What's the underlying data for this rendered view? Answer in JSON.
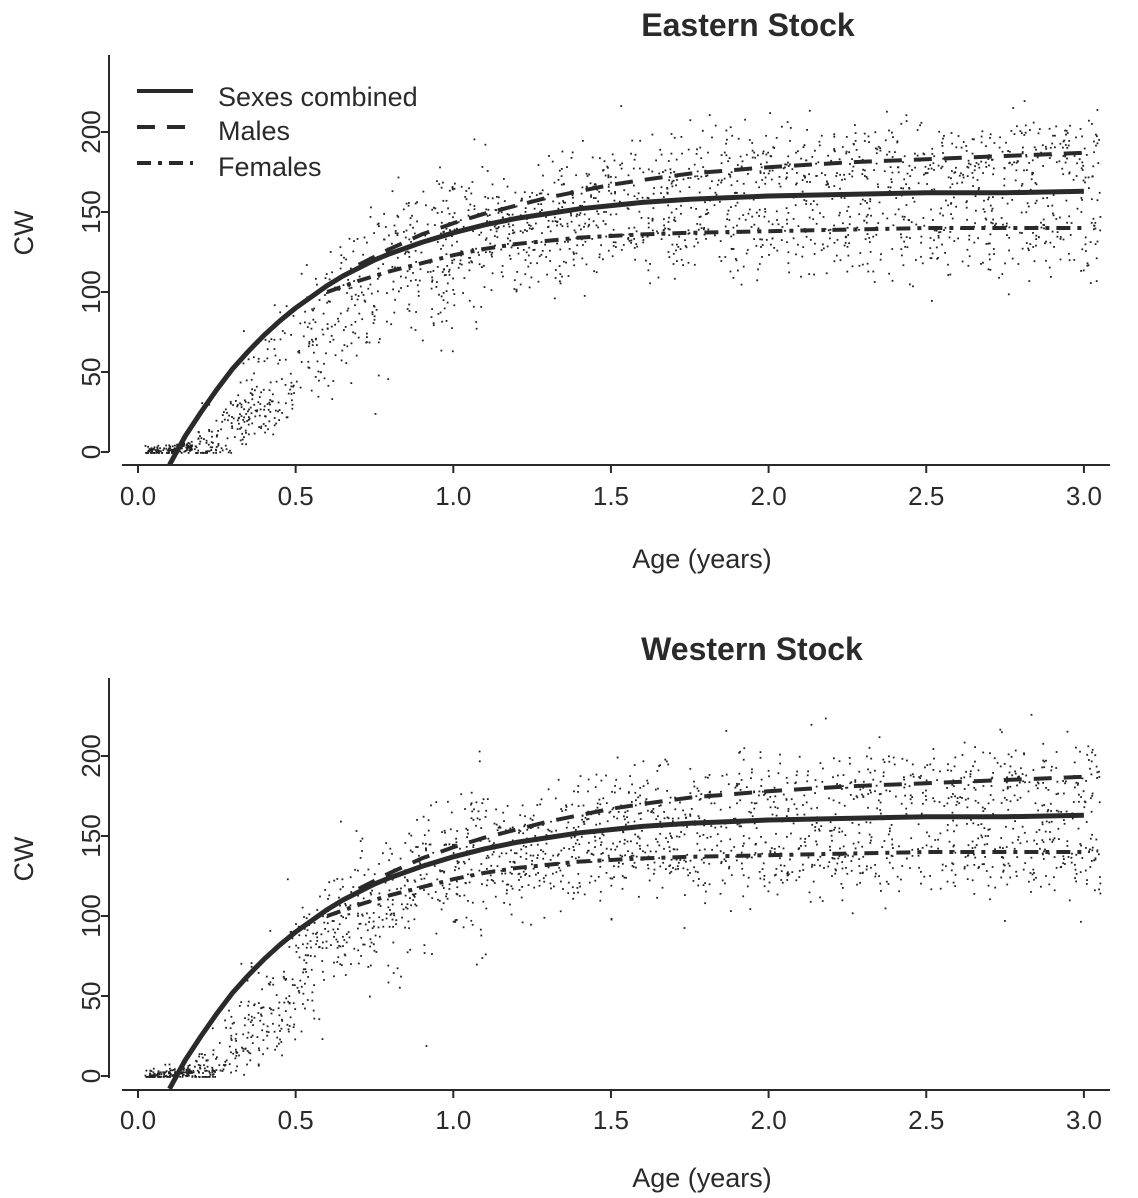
{
  "chart_data": [
    {
      "type": "scatter",
      "title": "Eastern Stock",
      "xlabel": "Age (years)",
      "ylabel": "CW",
      "xlim": [
        -0.03,
        3.1
      ],
      "ylim": [
        -10,
        240
      ],
      "x_ticks": [
        {
          "value": 0.0,
          "label": "0.0"
        },
        {
          "value": 0.5,
          "label": "0.5"
        },
        {
          "value": 1.0,
          "label": "1.0"
        },
        {
          "value": 1.5,
          "label": "1.5"
        },
        {
          "value": 2.0,
          "label": "2.0"
        },
        {
          "value": 2.5,
          "label": "2.5"
        },
        {
          "value": 3.0,
          "label": "3.0"
        }
      ],
      "y_ticks": [
        {
          "value": 0,
          "label": "0"
        },
        {
          "value": 50,
          "label": "50"
        },
        {
          "value": 100,
          "label": "100"
        },
        {
          "value": 150,
          "label": "150"
        },
        {
          "value": 200,
          "label": "200"
        }
      ],
      "legend": {
        "placement": "top-left",
        "entries": [
          {
            "label": "Sexes combined",
            "style": "solid"
          },
          {
            "label": "Males",
            "style": "dashed"
          },
          {
            "label": "Females",
            "style": "dashdot"
          }
        ]
      },
      "series": [
        {
          "name": "Sexes combined",
          "style": "solid",
          "x": [
            0.1,
            0.15,
            0.2,
            0.25,
            0.3,
            0.35,
            0.4,
            0.45,
            0.5,
            0.55,
            0.6,
            0.65,
            0.7,
            0.75,
            0.8,
            0.9,
            1.0,
            1.1,
            1.2,
            1.3,
            1.4,
            1.5,
            1.6,
            1.75,
            2.0,
            2.25,
            2.5,
            2.75,
            3.0
          ],
          "y": [
            -8,
            10,
            25,
            39,
            52,
            63,
            73,
            82,
            90,
            97,
            104,
            110,
            115,
            120,
            124,
            131,
            137,
            142,
            146,
            149,
            152,
            154,
            156,
            158,
            160,
            161,
            162,
            162,
            163
          ]
        },
        {
          "name": "Males",
          "style": "dashed",
          "x": [
            0.7,
            0.8,
            0.9,
            1.0,
            1.1,
            1.2,
            1.3,
            1.4,
            1.5,
            1.6,
            1.75,
            2.0,
            2.25,
            2.5,
            2.75,
            3.0
          ],
          "y": [
            117,
            127,
            136,
            143,
            149,
            154,
            159,
            163,
            167,
            170,
            174,
            178,
            181,
            183,
            185,
            187
          ]
        },
        {
          "name": "Females",
          "style": "dashdot",
          "x": [
            0.6,
            0.7,
            0.8,
            0.9,
            1.0,
            1.1,
            1.2,
            1.3,
            1.4,
            1.5,
            1.6,
            1.75,
            2.0,
            2.25,
            2.5,
            2.75,
            3.0
          ],
          "y": [
            100,
            107,
            113,
            118,
            123,
            127,
            130,
            132,
            134,
            135,
            136,
            137,
            138,
            139,
            140,
            140,
            140
          ]
        }
      ],
      "scatter_note_points": "about 2000 individual observations; noisy around the curves"
    },
    {
      "type": "scatter",
      "title": "Western Stock",
      "xlabel": "Age (years)",
      "ylabel": "CW",
      "xlim": [
        -0.03,
        3.1
      ],
      "ylim": [
        -10,
        240
      ],
      "x_ticks": [
        {
          "value": 0.0,
          "label": "0.0"
        },
        {
          "value": 0.5,
          "label": "0.5"
        },
        {
          "value": 1.0,
          "label": "1.0"
        },
        {
          "value": 1.5,
          "label": "1.5"
        },
        {
          "value": 2.0,
          "label": "2.0"
        },
        {
          "value": 2.5,
          "label": "2.5"
        },
        {
          "value": 3.0,
          "label": "3.0"
        }
      ],
      "y_ticks": [
        {
          "value": 0,
          "label": "0"
        },
        {
          "value": 50,
          "label": "50"
        },
        {
          "value": 100,
          "label": "100"
        },
        {
          "value": 150,
          "label": "150"
        },
        {
          "value": 200,
          "label": "200"
        }
      ],
      "series": [
        {
          "name": "Sexes combined",
          "style": "solid",
          "x": [
            0.1,
            0.15,
            0.2,
            0.25,
            0.3,
            0.35,
            0.4,
            0.45,
            0.5,
            0.55,
            0.6,
            0.65,
            0.7,
            0.75,
            0.8,
            0.9,
            1.0,
            1.1,
            1.2,
            1.3,
            1.4,
            1.5,
            1.6,
            1.75,
            2.0,
            2.25,
            2.5,
            2.75,
            3.0
          ],
          "y": [
            -8,
            10,
            25,
            39,
            52,
            63,
            73,
            82,
            90,
            97,
            104,
            110,
            115,
            120,
            124,
            131,
            137,
            142,
            146,
            149,
            152,
            154,
            156,
            158,
            160,
            161,
            162,
            162,
            163
          ]
        },
        {
          "name": "Males",
          "style": "dashed",
          "x": [
            0.7,
            0.8,
            0.9,
            1.0,
            1.1,
            1.2,
            1.3,
            1.4,
            1.5,
            1.6,
            1.75,
            2.0,
            2.25,
            2.5,
            2.75,
            3.0
          ],
          "y": [
            117,
            127,
            136,
            143,
            149,
            154,
            159,
            163,
            167,
            170,
            174,
            178,
            181,
            183,
            185,
            187
          ]
        },
        {
          "name": "Females",
          "style": "dashdot",
          "x": [
            0.6,
            0.7,
            0.8,
            0.9,
            1.0,
            1.1,
            1.2,
            1.3,
            1.4,
            1.5,
            1.6,
            1.75,
            2.0,
            2.25,
            2.5,
            2.75,
            3.0
          ],
          "y": [
            100,
            107,
            113,
            118,
            123,
            127,
            130,
            132,
            134,
            135,
            136,
            137,
            138,
            139,
            140,
            140,
            140
          ]
        }
      ]
    }
  ]
}
